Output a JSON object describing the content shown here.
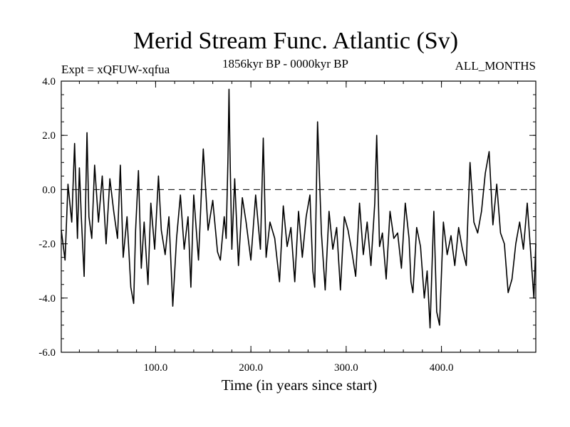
{
  "chart_data": {
    "type": "line",
    "title": "Merid Stream Func. Atlantic (Sv)",
    "experiment_label": "Expt = xQFUW-xqfua",
    "period_label": "1856kyr BP - 0000kyr BP",
    "season_label": "ALL_MONTHS",
    "xlabel": "Time (in years since start)",
    "ylabel": "",
    "xlim": [
      1,
      499
    ],
    "ylim": [
      -6.0,
      4.0
    ],
    "xticks": [
      100.0,
      200.0,
      300.0,
      400.0
    ],
    "xtick_labels": [
      "100.0",
      "200.0",
      "300.0",
      "400.0"
    ],
    "yticks": [
      -6.0,
      -4.0,
      -2.0,
      0.0,
      2.0,
      4.0
    ],
    "ytick_labels": [
      "-6.0",
      "-4.0",
      "-2.0",
      "0.0",
      "2.0",
      "4.0"
    ],
    "reference_line": 0.0,
    "series": [
      {
        "name": "Merid Stream Func. Atlantic",
        "x": [
          1,
          5,
          8,
          12,
          15,
          18,
          20,
          22,
          25,
          28,
          30,
          33,
          36,
          40,
          44,
          48,
          52,
          56,
          60,
          63,
          66,
          70,
          74,
          77,
          79,
          82,
          85,
          88,
          92,
          95,
          99,
          103,
          106,
          110,
          114,
          118,
          122,
          126,
          130,
          134,
          137,
          140,
          145,
          150,
          155,
          160,
          165,
          168,
          172,
          174,
          176,
          177,
          178,
          180,
          183,
          187,
          191,
          195,
          200,
          205,
          210,
          213,
          216,
          220,
          225,
          230,
          234,
          238,
          242,
          246,
          250,
          254,
          258,
          262,
          265,
          267,
          270,
          274,
          278,
          282,
          286,
          290,
          294,
          298,
          302,
          306,
          310,
          314,
          318,
          322,
          326,
          330,
          332,
          335,
          338,
          342,
          346,
          350,
          354,
          358,
          362,
          366,
          368,
          370,
          374,
          378,
          382,
          385,
          388,
          391,
          392,
          395,
          398,
          402,
          406,
          410,
          414,
          418,
          422,
          426,
          428,
          430,
          434,
          438,
          442,
          446,
          450,
          454,
          458,
          462,
          466,
          470,
          474,
          478,
          482,
          486,
          490,
          494,
          497,
          499
        ],
        "y": [
          -1.5,
          -2.6,
          0.2,
          -1.2,
          1.7,
          -1.8,
          0.8,
          -1.0,
          -3.2,
          2.1,
          -1.0,
          -1.8,
          0.9,
          -1.2,
          0.5,
          -2.0,
          0.4,
          -0.8,
          -1.8,
          0.9,
          -2.5,
          -1.0,
          -3.6,
          -4.2,
          -1.5,
          0.7,
          -2.9,
          -1.2,
          -3.5,
          -0.5,
          -2.2,
          0.5,
          -1.5,
          -2.4,
          -1.0,
          -4.3,
          -1.8,
          -0.2,
          -2.2,
          -1.0,
          -3.6,
          -0.2,
          -2.6,
          1.5,
          -1.5,
          -0.4,
          -2.3,
          -2.6,
          -1.0,
          -1.8,
          1.2,
          3.7,
          1.5,
          -2.2,
          0.4,
          -2.8,
          -0.3,
          -1.2,
          -2.6,
          -0.2,
          -2.2,
          1.9,
          -2.5,
          -1.2,
          -1.8,
          -3.4,
          -0.6,
          -2.1,
          -1.4,
          -3.4,
          -0.8,
          -2.5,
          -1.0,
          -0.2,
          -3.0,
          -3.6,
          2.5,
          -1.6,
          -3.7,
          -0.8,
          -2.2,
          -1.4,
          -3.7,
          -1.0,
          -1.5,
          -2.3,
          -3.2,
          -0.5,
          -2.4,
          -1.2,
          -2.8,
          -0.5,
          2.0,
          -2.1,
          -1.6,
          -3.3,
          -0.8,
          -1.8,
          -1.6,
          -2.9,
          -0.5,
          -1.8,
          -3.4,
          -3.8,
          -1.4,
          -2.1,
          -4.0,
          -3.0,
          -5.1,
          -1.8,
          -0.8,
          -4.5,
          -5.0,
          -1.2,
          -2.4,
          -1.7,
          -2.8,
          -1.4,
          -2.2,
          -2.8,
          -0.8,
          1.0,
          -1.2,
          -1.6,
          -0.8,
          0.6,
          1.4,
          -1.3,
          0.2,
          -1.6,
          -2.0,
          -3.8,
          -3.3,
          -2.0,
          -1.2,
          -2.2,
          -0.5,
          -2.5,
          -4.0,
          -2.0
        ]
      }
    ]
  }
}
